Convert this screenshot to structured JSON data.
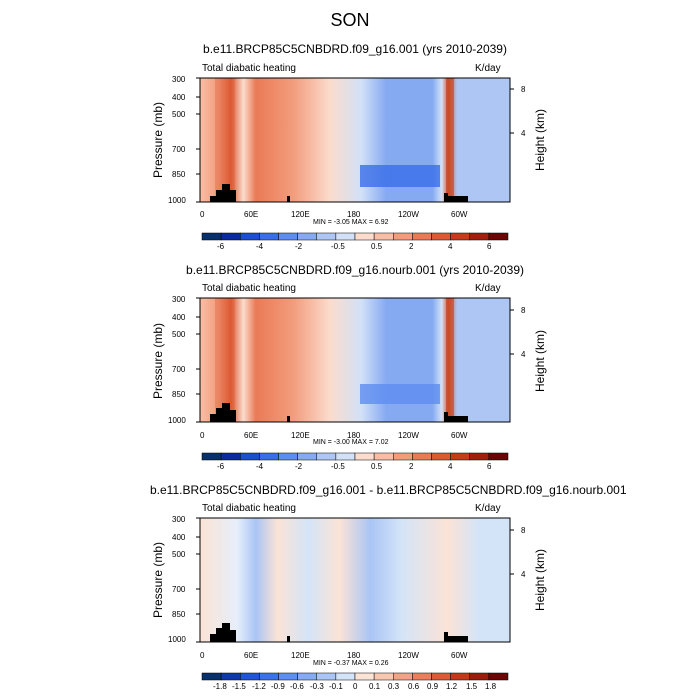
{
  "main_title": "SON",
  "chart_data": [
    {
      "type": "heatmap",
      "title": "b.e11.BRCP85C5CNBDRD.f09_g16.001 (yrs 2010-2039)",
      "left_label": "Total diabatic heating",
      "right_label": "K/day",
      "ylabel": "Pressure (mb)",
      "ylabel_right": "Height (km)",
      "x_ticks": [
        "0",
        "60E",
        "120E",
        "180",
        "120W",
        "60W"
      ],
      "y_ticks": [
        "300",
        "400",
        "500",
        "700",
        "850",
        "1000"
      ],
      "height_ticks": [
        "8",
        "4"
      ],
      "min_max": "MIN = -3.05   MAX =  6.92",
      "colorbar_labels": [
        "-6",
        "-4",
        "-2",
        "-0.5",
        "0.5",
        "2",
        "4",
        "6"
      ]
    },
    {
      "type": "heatmap",
      "title": "b.e11.BRCP85C5CNBDRD.f09_g16.nourb.001 (yrs 2010-2039)",
      "left_label": "Total diabatic heating",
      "right_label": "K/day",
      "ylabel": "Pressure (mb)",
      "ylabel_right": "Height (km)",
      "x_ticks": [
        "0",
        "60E",
        "120E",
        "180",
        "120W",
        "60W"
      ],
      "y_ticks": [
        "300",
        "400",
        "500",
        "700",
        "850",
        "1000"
      ],
      "height_ticks": [
        "8",
        "4"
      ],
      "min_max": "MIN = -3.00   MAX =  7.02",
      "colorbar_labels": [
        "-6",
        "-4",
        "-2",
        "-0.5",
        "0.5",
        "2",
        "4",
        "6"
      ]
    },
    {
      "type": "heatmap",
      "title": "b.e11.BRCP85C5CNBDRD.f09_g16.001 - b.e11.BRCP85C5CNBDRD.f09_g16.nourb.001",
      "left_label": "Total diabatic heating",
      "right_label": "K/day",
      "ylabel": "Pressure (mb)",
      "ylabel_right": "Height (km)",
      "x_ticks": [
        "0",
        "60E",
        "120E",
        "180",
        "120W",
        "60W"
      ],
      "y_ticks": [
        "300",
        "400",
        "500",
        "700",
        "850",
        "1000"
      ],
      "height_ticks": [
        "8",
        "4"
      ],
      "min_max": "MIN = -0.37   MAX =  0.26",
      "colorbar_labels": [
        "-1.8",
        "-1.5",
        "-1.2",
        "-0.9",
        "-0.6",
        "-0.3",
        "-0.1",
        "0",
        "0.1",
        "0.3",
        "0.6",
        "0.9",
        "1.2",
        "1.5",
        "1.8"
      ]
    }
  ],
  "colors": {
    "full_scale": [
      "#08306b",
      "#0a2aa0",
      "#1b4fd0",
      "#3a6ee8",
      "#5e8df0",
      "#86aaf2",
      "#aec6f4",
      "#d2e1f7",
      "#fbdccd",
      "#f8bea5",
      "#f29c7c",
      "#ea7a56",
      "#dc5934",
      "#c53b1c",
      "#a11f0c",
      "#6a0606"
    ],
    "diff_scale": [
      "#08306b",
      "#0d3aa8",
      "#1f56d6",
      "#3b72ea",
      "#5d8ef1",
      "#84abf3",
      "#aac5f5",
      "#d4e4f8",
      "#fbe3d6",
      "#f8c7b0",
      "#f2a385",
      "#ea7f5b",
      "#dc5a35",
      "#c23a1a",
      "#9b1d0b",
      "#6a0606"
    ]
  }
}
